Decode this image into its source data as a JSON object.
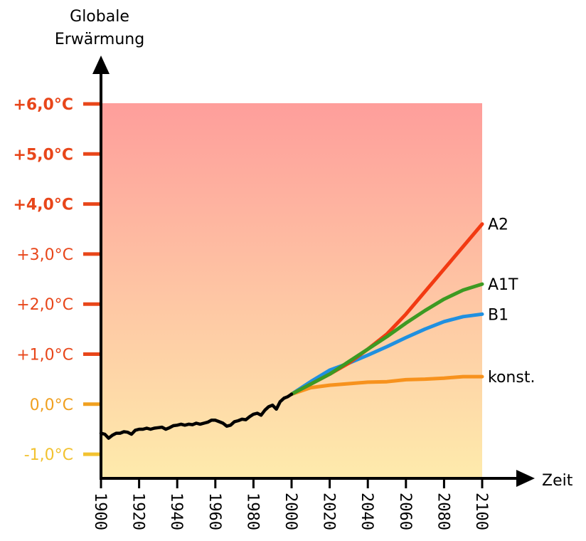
{
  "chart_data": {
    "type": "line",
    "ylabel_lines": [
      "Globale",
      "Erwärmung"
    ],
    "xlabel": "Zeit",
    "xlim": [
      1900,
      2100
    ],
    "ylim": [
      -1.47,
      6.0
    ],
    "x_ticks": [
      "1900",
      "1920",
      "1940",
      "1960",
      "1980",
      "2000",
      "2020",
      "2040",
      "2060",
      "2080",
      "2100"
    ],
    "y_ticks": [
      {
        "value": 6,
        "label": "+6,0°C",
        "color": "#e8461a",
        "bold": true
      },
      {
        "value": 5,
        "label": "+5,0°C",
        "color": "#e8461a",
        "bold": true
      },
      {
        "value": 4,
        "label": "+4,0°C",
        "color": "#e8461a",
        "bold": true
      },
      {
        "value": 3,
        "label": "+3,0°C",
        "color": "#e8461a",
        "bold": false
      },
      {
        "value": 2,
        "label": "+2,0°C",
        "color": "#e8461a",
        "bold": false
      },
      {
        "value": 1,
        "label": "+1,0°C",
        "color": "#e8461a",
        "bold": false
      },
      {
        "value": 0,
        "label": "0,0°C",
        "color": "#f0a020",
        "bold": false
      },
      {
        "value": -1,
        "label": "-1,0°C",
        "color": "#f2c230",
        "bold": false
      }
    ],
    "background_gradient": {
      "top": "#fe9e9b",
      "bottom": "#feebac"
    },
    "historical": {
      "color": "#000000",
      "x": [
        1900,
        1902,
        1904,
        1906,
        1908,
        1910,
        1912,
        1914,
        1916,
        1918,
        1920,
        1922,
        1924,
        1926,
        1928,
        1930,
        1932,
        1934,
        1936,
        1938,
        1940,
        1942,
        1944,
        1946,
        1948,
        1950,
        1952,
        1954,
        1956,
        1958,
        1960,
        1962,
        1964,
        1966,
        1968,
        1970,
        1972,
        1974,
        1976,
        1978,
        1980,
        1982,
        1984,
        1986,
        1988,
        1990,
        1992,
        1994,
        1996,
        1998,
        2000
      ],
      "y": [
        -0.58,
        -0.6,
        -0.68,
        -0.62,
        -0.58,
        -0.58,
        -0.55,
        -0.56,
        -0.6,
        -0.52,
        -0.5,
        -0.5,
        -0.48,
        -0.5,
        -0.48,
        -0.47,
        -0.46,
        -0.5,
        -0.47,
        -0.43,
        -0.42,
        -0.4,
        -0.42,
        -0.4,
        -0.41,
        -0.38,
        -0.4,
        -0.38,
        -0.36,
        -0.32,
        -0.32,
        -0.35,
        -0.38,
        -0.44,
        -0.42,
        -0.35,
        -0.33,
        -0.3,
        -0.31,
        -0.25,
        -0.2,
        -0.18,
        -0.22,
        -0.12,
        -0.05,
        -0.02,
        -0.1,
        0.05,
        0.12,
        0.15,
        0.2
      ]
    },
    "series": [
      {
        "name": "A2",
        "color": "#f23a12",
        "x": [
          2000,
          2010,
          2020,
          2030,
          2040,
          2050,
          2060,
          2070,
          2080,
          2090,
          2100
        ],
        "y": [
          0.2,
          0.4,
          0.6,
          0.82,
          1.1,
          1.4,
          1.8,
          2.25,
          2.7,
          3.15,
          3.6
        ]
      },
      {
        "name": "A1T",
        "color": "#3d9a22",
        "x": [
          2000,
          2010,
          2020,
          2030,
          2040,
          2050,
          2060,
          2070,
          2080,
          2090,
          2100
        ],
        "y": [
          0.2,
          0.4,
          0.6,
          0.85,
          1.1,
          1.35,
          1.62,
          1.87,
          2.1,
          2.28,
          2.4
        ]
      },
      {
        "name": "B1",
        "color": "#2090e0",
        "x": [
          2000,
          2010,
          2020,
          2030,
          2040,
          2050,
          2060,
          2070,
          2080,
          2090,
          2100
        ],
        "y": [
          0.2,
          0.45,
          0.68,
          0.82,
          0.98,
          1.15,
          1.33,
          1.5,
          1.65,
          1.75,
          1.8
        ]
      },
      {
        "name": "konst.",
        "color": "#f7921d",
        "x": [
          2000,
          2010,
          2020,
          2030,
          2040,
          2050,
          2060,
          2070,
          2080,
          2090,
          2100
        ],
        "y": [
          0.2,
          0.33,
          0.38,
          0.41,
          0.44,
          0.45,
          0.49,
          0.5,
          0.52,
          0.55,
          0.55
        ]
      }
    ]
  }
}
